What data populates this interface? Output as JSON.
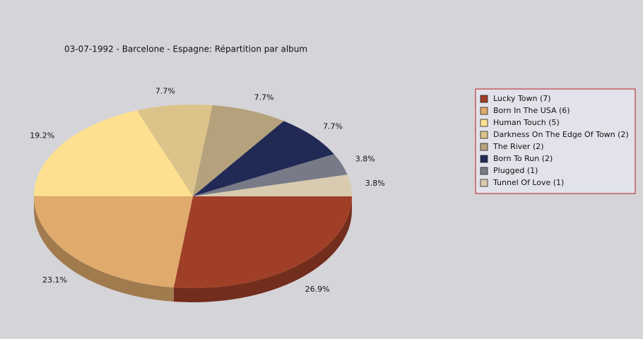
{
  "chart_data": {
    "type": "pie3d",
    "title": "03-07-1992 - Barcelone - Espagne:  Répartition par album",
    "categories": [
      "Lucky Town (7)",
      "Born In The USA (6)",
      "Human Touch (5)",
      "Darkness On The Edge Of Town (2)",
      "The River (2)",
      "Born To Run (2)",
      "Plugged (1)",
      "Tunnel Of Love (1)"
    ],
    "values": [
      26.9,
      23.1,
      19.2,
      7.7,
      7.7,
      7.7,
      3.8,
      3.8
    ],
    "value_labels": [
      "26.9%",
      "23.1%",
      "19.2%",
      "7.7%",
      "7.7%",
      "7.7%",
      "3.8%",
      "3.8%"
    ],
    "colors": [
      "#a03f28",
      "#e0aa6c",
      "#fee090",
      "#dcc38a",
      "#b5a27c",
      "#212a55",
      "#787a88",
      "#d8cbb0"
    ],
    "legend": "right"
  }
}
